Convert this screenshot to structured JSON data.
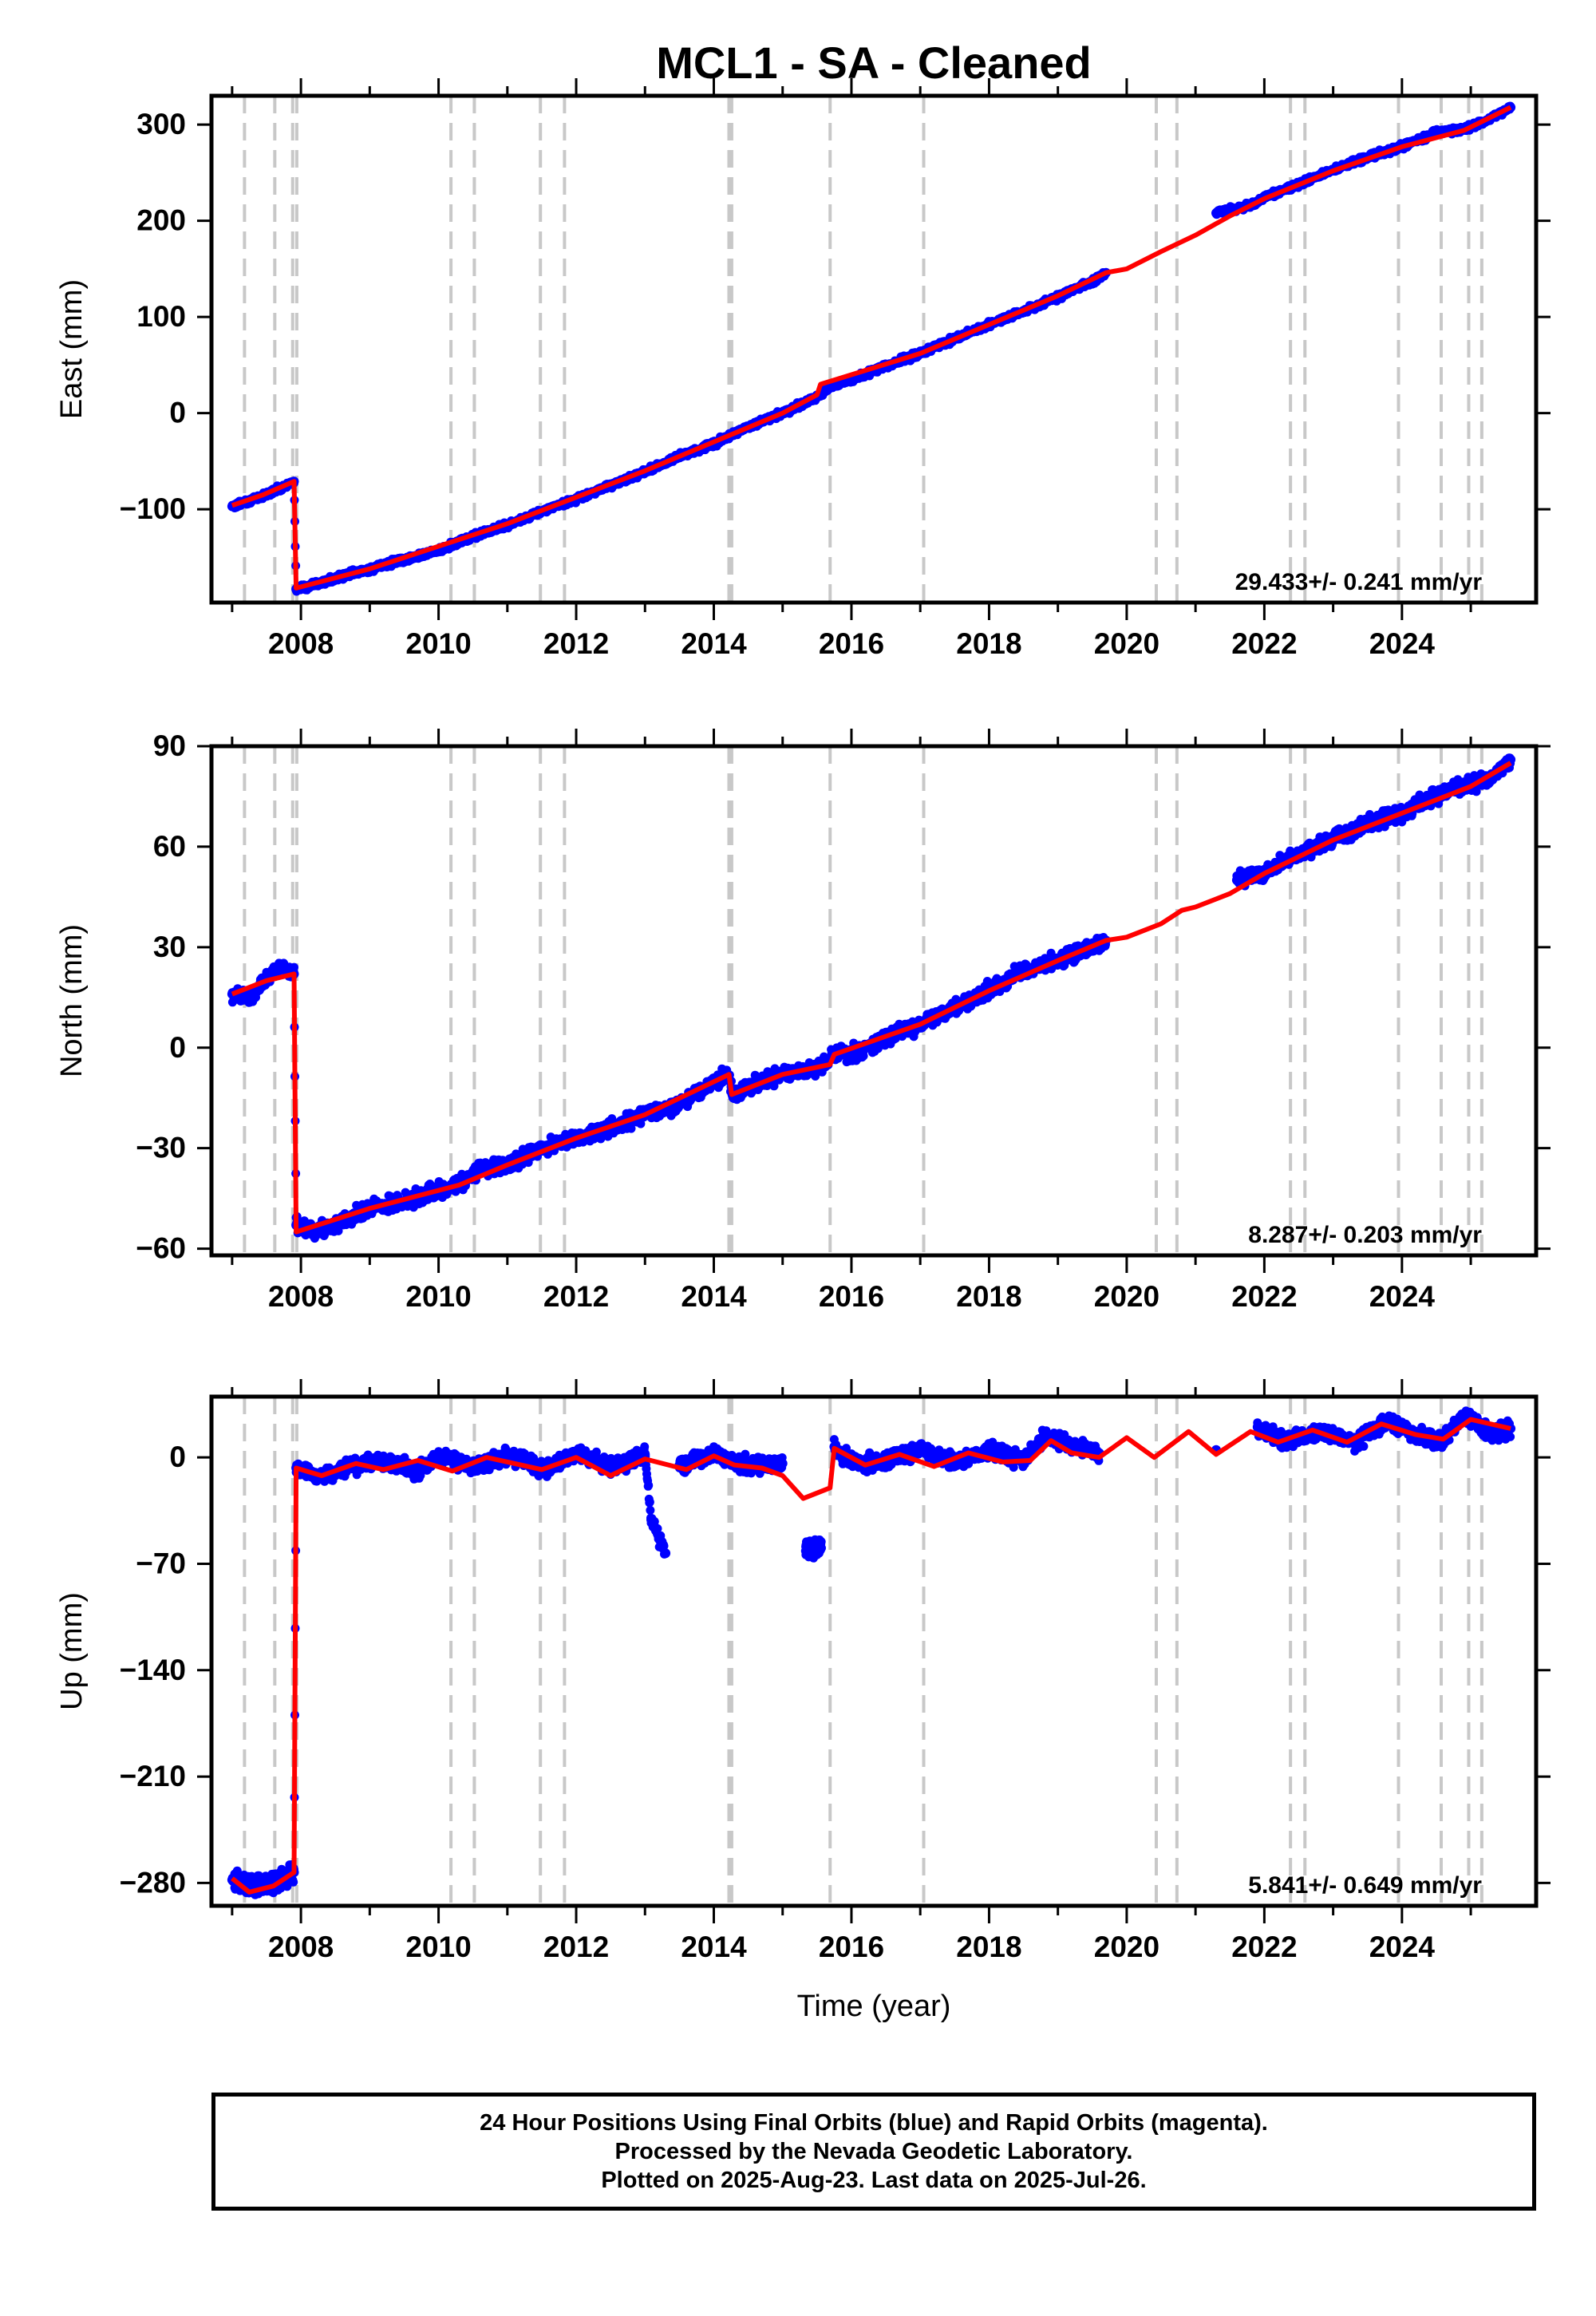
{
  "title": "MCL1  - SA - Cleaned",
  "colors": {
    "data": "#0000ff",
    "model": "#ff0000",
    "steps": "#c8c8c8",
    "axes": "#000000"
  },
  "chart_data": [
    {
      "type": "scatter",
      "ylabel": "East (mm)",
      "xlabel": "",
      "xlim": [
        2006.7,
        2025.95
      ],
      "ylim": [
        -197,
        330
      ],
      "yticks": [
        -100,
        0,
        100,
        200,
        300
      ],
      "ytick_labels": [
        "−100",
        "0",
        "100",
        "200",
        "300"
      ],
      "xticks": [
        2008,
        2010,
        2012,
        2014,
        2016,
        2018,
        2020,
        2022,
        2024
      ],
      "xtick_labels": [
        "2008",
        "2010",
        "2012",
        "2014",
        "2016",
        "2018",
        "2020",
        "2022",
        "2024"
      ],
      "rate": "29.433+/- 0.241 mm/yr",
      "series": [
        {
          "values": [
            [
              2007.0,
              -97
            ],
            [
              2007.45,
              -86
            ],
            [
              2007.9,
              -71
            ],
            [
              2007.93,
              -183
            ],
            [
              2008.5,
              -172
            ],
            [
              2009.0,
              -162
            ],
            [
              2009.5,
              -152
            ],
            [
              2010.0,
              -143
            ],
            [
              2010.5,
              -128
            ],
            [
              2011.0,
              -117
            ],
            [
              2011.5,
              -102
            ],
            [
              2012.0,
              -89
            ],
            [
              2012.5,
              -75
            ],
            [
              2013.0,
              -61
            ],
            [
              2013.5,
              -45
            ],
            [
              2014.0,
              -32
            ],
            [
              2014.5,
              -14
            ],
            [
              2015.0,
              0
            ],
            [
              2015.5,
              17
            ],
            [
              2015.7,
              28
            ],
            [
              2016.0,
              35
            ],
            [
              2016.5,
              49
            ],
            [
              2017.0,
              62
            ],
            [
              2017.5,
              78
            ],
            [
              2018.0,
              92
            ],
            [
              2018.5,
              106
            ],
            [
              2019.0,
              121
            ],
            [
              2019.5,
              137
            ],
            [
              2019.7,
              146
            ],
            [
              2021.3,
              208
            ],
            [
              2021.8,
              216
            ],
            [
              2022.0,
              224
            ],
            [
              2022.5,
              238
            ],
            [
              2023.0,
              253
            ],
            [
              2023.5,
              266
            ],
            [
              2024.0,
              277
            ],
            [
              2024.5,
              292
            ],
            [
              2024.9,
              295
            ],
            [
              2025.2,
              303
            ],
            [
              2025.58,
              318
            ]
          ]
        },
        {
          "values": [
            [
              2007.0,
              -96
            ],
            [
              2007.45,
              -85
            ],
            [
              2007.9,
              -71
            ],
            [
              2007.93,
              -182
            ],
            [
              2009.0,
              -162
            ],
            [
              2011.0,
              -115
            ],
            [
              2013.0,
              -60
            ],
            [
              2015.0,
              0
            ],
            [
              2015.5,
              19
            ],
            [
              2015.55,
              30
            ],
            [
              2017.0,
              62
            ],
            [
              2019.0,
              122
            ],
            [
              2019.7,
              146
            ],
            [
              2020.0,
              150
            ],
            [
              2020.5,
              168
            ],
            [
              2021.0,
              185
            ],
            [
              2021.5,
              205
            ],
            [
              2022.0,
              223
            ],
            [
              2023.0,
              252
            ],
            [
              2024.0,
              277
            ],
            [
              2024.9,
              294
            ],
            [
              2025.58,
              318
            ]
          ]
        }
      ],
      "steps": [
        2007.18,
        2007.62,
        2007.88,
        2007.94,
        2010.18,
        2010.52,
        2011.48,
        2011.83,
        2014.22,
        2014.26,
        2015.69,
        2017.05,
        2020.43,
        2020.73,
        2022.38,
        2022.59,
        2023.95,
        2024.57,
        2024.97,
        2025.16
      ]
    },
    {
      "type": "scatter",
      "ylabel": "North (mm)",
      "xlabel": "",
      "xlim": [
        2006.7,
        2025.95
      ],
      "ylim": [
        -62,
        90
      ],
      "yticks": [
        -60,
        -30,
        0,
        30,
        60,
        90
      ],
      "ytick_labels": [
        "−60",
        "−30",
        "0",
        "30",
        "60",
        "90"
      ],
      "xticks": [
        2008,
        2010,
        2012,
        2014,
        2016,
        2018,
        2020,
        2022,
        2024
      ],
      "xtick_labels": [
        "2008",
        "2010",
        "2012",
        "2014",
        "2016",
        "2018",
        "2020",
        "2022",
        "2024"
      ],
      "rate": "8.287+/- 0.203 mm/yr",
      "series": [
        {
          "values": [
            [
              2007.0,
              16
            ],
            [
              2007.3,
              15
            ],
            [
              2007.5,
              21
            ],
            [
              2007.7,
              24
            ],
            [
              2007.9,
              22
            ],
            [
              2007.93,
              -53
            ],
            [
              2008.2,
              -55
            ],
            [
              2008.5,
              -53
            ],
            [
              2009.0,
              -48
            ],
            [
              2009.5,
              -46
            ],
            [
              2010.0,
              -42
            ],
            [
              2010.3,
              -41
            ],
            [
              2010.6,
              -36
            ],
            [
              2011.0,
              -35
            ],
            [
              2011.5,
              -30
            ],
            [
              2012.0,
              -27
            ],
            [
              2012.5,
              -24
            ],
            [
              2013.0,
              -20
            ],
            [
              2013.5,
              -17
            ],
            [
              2014.0,
              -10
            ],
            [
              2014.2,
              -8
            ],
            [
              2014.28,
              -14
            ],
            [
              2014.6,
              -11
            ],
            [
              2015.0,
              -8
            ],
            [
              2015.5,
              -7
            ],
            [
              2015.75,
              -2
            ],
            [
              2016.0,
              -2
            ],
            [
              2016.5,
              3
            ],
            [
              2017.0,
              7
            ],
            [
              2017.5,
              12
            ],
            [
              2018.0,
              17
            ],
            [
              2018.5,
              23
            ],
            [
              2019.0,
              26
            ],
            [
              2019.5,
              30
            ],
            [
              2019.7,
              32
            ],
            [
              2021.6,
              50
            ],
            [
              2022.0,
              52
            ],
            [
              2022.5,
              58
            ],
            [
              2023.0,
              62
            ],
            [
              2023.5,
              67
            ],
            [
              2024.0,
              70
            ],
            [
              2024.5,
              75
            ],
            [
              2025.0,
              79
            ],
            [
              2025.3,
              80
            ],
            [
              2025.58,
              86
            ]
          ]
        },
        {
          "values": [
            [
              2007.0,
              16
            ],
            [
              2007.5,
              20
            ],
            [
              2007.9,
              22
            ],
            [
              2007.93,
              -55
            ],
            [
              2009.0,
              -48
            ],
            [
              2010.3,
              -41
            ],
            [
              2011.0,
              -35
            ],
            [
              2012.0,
              -27
            ],
            [
              2013.0,
              -20
            ],
            [
              2014.22,
              -8
            ],
            [
              2014.26,
              -14
            ],
            [
              2015.0,
              -8
            ],
            [
              2015.69,
              -5
            ],
            [
              2015.75,
              -2
            ],
            [
              2017.0,
              7
            ],
            [
              2018.0,
              17
            ],
            [
              2019.0,
              26
            ],
            [
              2019.7,
              32
            ],
            [
              2020.0,
              33
            ],
            [
              2020.5,
              37
            ],
            [
              2020.8,
              41
            ],
            [
              2021.0,
              42
            ],
            [
              2021.5,
              46
            ],
            [
              2022.0,
              52
            ],
            [
              2022.6,
              58
            ],
            [
              2023.0,
              62
            ],
            [
              2024.0,
              70
            ],
            [
              2025.0,
              78
            ],
            [
              2025.58,
              85
            ]
          ]
        }
      ],
      "steps": [
        2007.18,
        2007.62,
        2007.88,
        2007.94,
        2010.18,
        2010.52,
        2011.48,
        2011.83,
        2014.22,
        2014.26,
        2015.69,
        2017.05,
        2020.43,
        2020.73,
        2022.38,
        2022.59,
        2023.95,
        2024.57,
        2024.97,
        2025.16
      ]
    },
    {
      "type": "scatter",
      "ylabel": "Up (mm)",
      "xlabel": "Time (year)",
      "xlim": [
        2006.7,
        2025.95
      ],
      "ylim": [
        -295,
        40
      ],
      "yticks": [
        -280,
        -210,
        -140,
        -70,
        0
      ],
      "ytick_labels": [
        "−280",
        "−210",
        "−140",
        "−70",
        "0"
      ],
      "xticks": [
        2008,
        2010,
        2012,
        2014,
        2016,
        2018,
        2020,
        2022,
        2024
      ],
      "xtick_labels": [
        "2008",
        "2010",
        "2012",
        "2014",
        "2016",
        "2018",
        "2020",
        "2022",
        "2024"
      ],
      "rate": "5.841+/- 0.649 mm/yr",
      "series": [
        {
          "values": [
            [
              2007.0,
              -278
            ],
            [
              2007.3,
              -282
            ],
            [
              2007.6,
              -281
            ],
            [
              2007.9,
              -273
            ],
            [
              2007.93,
              -7
            ],
            [
              2008.3,
              -13
            ],
            [
              2008.7,
              -6
            ],
            [
              2009.2,
              -3
            ],
            [
              2009.7,
              -9
            ],
            [
              2010.0,
              1
            ],
            [
              2010.5,
              -6
            ],
            [
              2011.0,
              2
            ],
            [
              2011.5,
              -8
            ],
            [
              2012.0,
              3
            ],
            [
              2012.5,
              -7
            ],
            [
              2013.0,
              2
            ],
            [
              2013.09,
              -41
            ],
            [
              2013.3,
              -63
            ],
            [
              2013.5,
              -5
            ],
            [
              2014.0,
              3
            ],
            [
              2014.5,
              -6
            ],
            [
              2015.0,
              -4
            ],
            [
              2015.35,
              -58
            ],
            [
              2015.45,
              -62
            ],
            [
              2015.55,
              -57
            ],
            [
              2015.75,
              7
            ],
            [
              2016.0,
              -3
            ],
            [
              2016.5,
              -3
            ],
            [
              2017.0,
              6
            ],
            [
              2017.5,
              -3
            ],
            [
              2018.0,
              5
            ],
            [
              2018.5,
              -2
            ],
            [
              2018.8,
              14
            ],
            [
              2019.2,
              8
            ],
            [
              2019.6,
              3
            ],
            [
              2021.3,
              5
            ],
            [
              2021.9,
              20
            ],
            [
              2022.3,
              10
            ],
            [
              2022.8,
              17
            ],
            [
              2023.3,
              10
            ],
            [
              2023.8,
              24
            ],
            [
              2024.2,
              15
            ],
            [
              2024.6,
              11
            ],
            [
              2024.9,
              28
            ],
            [
              2025.3,
              16
            ],
            [
              2025.58,
              19
            ]
          ]
        },
        {
          "values": [
            [
              2007.0,
              -277
            ],
            [
              2007.25,
              -286
            ],
            [
              2007.6,
              -282
            ],
            [
              2007.9,
              -273
            ],
            [
              2007.93,
              -7
            ],
            [
              2008.3,
              -12
            ],
            [
              2008.8,
              -4
            ],
            [
              2009.2,
              -8
            ],
            [
              2009.7,
              -2
            ],
            [
              2010.2,
              -9
            ],
            [
              2010.7,
              0
            ],
            [
              2011.2,
              -5
            ],
            [
              2011.5,
              -8
            ],
            [
              2012.0,
              0
            ],
            [
              2012.5,
              -12
            ],
            [
              2013.0,
              -1
            ],
            [
              2013.6,
              -8
            ],
            [
              2014.0,
              1
            ],
            [
              2014.3,
              -5
            ],
            [
              2014.7,
              -7
            ],
            [
              2015.0,
              -12
            ],
            [
              2015.3,
              -27
            ],
            [
              2015.69,
              -20
            ],
            [
              2015.75,
              6
            ],
            [
              2016.2,
              -5
            ],
            [
              2016.7,
              2
            ],
            [
              2017.2,
              -6
            ],
            [
              2017.7,
              3
            ],
            [
              2018.2,
              -3
            ],
            [
              2018.6,
              -2
            ],
            [
              2018.9,
              11
            ],
            [
              2019.2,
              3
            ],
            [
              2019.6,
              0
            ],
            [
              2020.0,
              13
            ],
            [
              2020.4,
              0
            ],
            [
              2020.9,
              17
            ],
            [
              2021.3,
              2
            ],
            [
              2021.8,
              17
            ],
            [
              2022.2,
              10
            ],
            [
              2022.7,
              18
            ],
            [
              2023.2,
              10
            ],
            [
              2023.7,
              22
            ],
            [
              2024.2,
              15
            ],
            [
              2024.6,
              12
            ],
            [
              2025.0,
              25
            ],
            [
              2025.58,
              19
            ]
          ]
        }
      ],
      "steps": [
        2007.18,
        2007.62,
        2007.88,
        2007.94,
        2010.18,
        2010.52,
        2011.48,
        2011.83,
        2014.22,
        2014.26,
        2015.69,
        2017.05,
        2020.43,
        2020.73,
        2022.38,
        2022.59,
        2023.95,
        2024.57,
        2024.97,
        2025.16
      ]
    }
  ],
  "footer": {
    "line1": "24 Hour Positions Using Final Orbits (blue) and Rapid Orbits (magenta).",
    "line2": "Processed by the Nevada Geodetic Laboratory.",
    "line3": "Plotted on 2025-Aug-23. Last data on 2025-Jul-26."
  }
}
